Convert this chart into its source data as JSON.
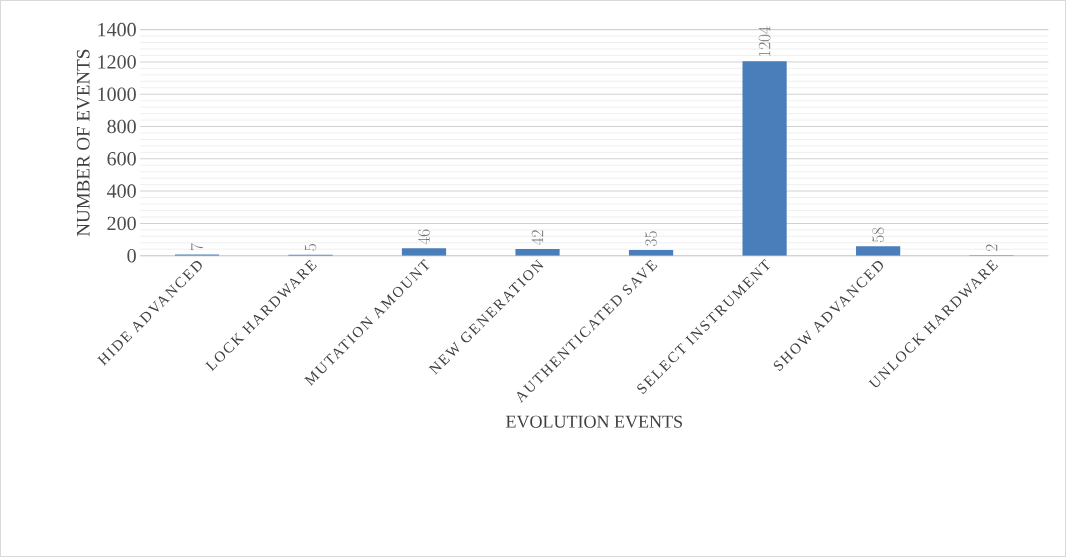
{
  "chart_data": {
    "type": "bar",
    "xlabel": "EVOLUTION EVENTS",
    "ylabel": "NUMBER OF EVENTS",
    "categories": [
      "HIDE ADVANCED",
      "LOCK HARDWARE",
      "MUTATION AMOUNT",
      "NEW GENERATION",
      "AUTHENTICATED SAVE",
      "SELECT INSTRUMENT",
      "SHOW ADVANCED",
      "UNLOCK HARDWARE"
    ],
    "values": [
      7,
      5,
      46,
      42,
      35,
      1204,
      58,
      2
    ],
    "color": "#4a7ebb",
    "ylim": [
      0,
      1400
    ],
    "yticks": [
      0,
      200,
      400,
      600,
      800,
      1000,
      1200,
      1400
    ],
    "grid": "y",
    "data_labels": true
  }
}
